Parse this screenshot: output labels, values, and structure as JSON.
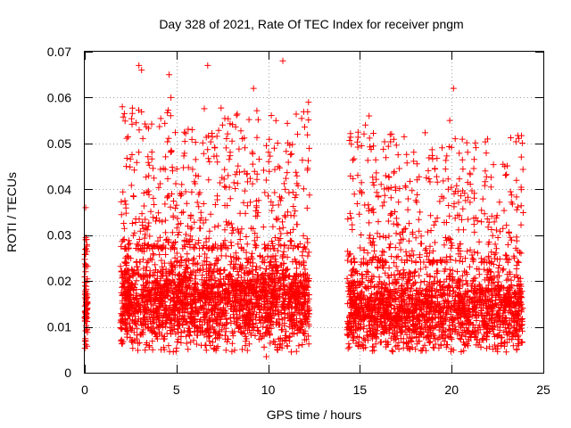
{
  "chart_data": {
    "type": "scatter",
    "title": "Day 328 of 2021, Rate Of TEC Index for receiver pngm",
    "xlabel": "GPS time / hours",
    "ylabel": "ROTI / TECUs",
    "xlim": [
      0,
      25
    ],
    "ylim": [
      0,
      0.07
    ],
    "xticks": [
      0,
      5,
      10,
      15,
      20,
      25
    ],
    "xtick_labels": [
      "0",
      "5",
      "10",
      "15",
      "20",
      "25"
    ],
    "yticks": [
      0,
      0.01,
      0.02,
      0.03,
      0.04,
      0.05,
      0.06,
      0.07
    ],
    "ytick_labels": [
      "0",
      "0.01",
      "0.02",
      "0.03",
      "0.04",
      "0.05",
      "0.06",
      "0.07"
    ],
    "grid": true,
    "marker": "+",
    "marker_color": "#ff0000",
    "series": [
      {
        "name": "ROTI",
        "segments": [
          {
            "x_start": 0.0,
            "x_end": 0.15,
            "base": 0.014,
            "spread": 0.009,
            "peak": 0.036
          },
          {
            "x_start": 1.95,
            "x_end": 12.25,
            "base": 0.016,
            "spread": 0.011,
            "peak": 0.068
          },
          {
            "x_start": 14.3,
            "x_end": 23.9,
            "base": 0.014,
            "spread": 0.01,
            "peak": 0.062
          }
        ],
        "notable_points": [
          {
            "x": 2.05,
            "y": 0.058
          },
          {
            "x": 2.95,
            "y": 0.067
          },
          {
            "x": 3.1,
            "y": 0.066
          },
          {
            "x": 4.6,
            "y": 0.065
          },
          {
            "x": 4.7,
            "y": 0.06
          },
          {
            "x": 6.7,
            "y": 0.067
          },
          {
            "x": 9.2,
            "y": 0.062
          },
          {
            "x": 10.8,
            "y": 0.068
          },
          {
            "x": 12.2,
            "y": 0.059
          },
          {
            "x": 15.5,
            "y": 0.056
          },
          {
            "x": 20.1,
            "y": 0.062
          },
          {
            "x": 19.9,
            "y": 0.055
          },
          {
            "x": 11.6,
            "y": 0.052
          },
          {
            "x": 15.3,
            "y": 0.054
          },
          {
            "x": 9.9,
            "y": 0.0035
          },
          {
            "x": 0.05,
            "y": 0.036
          },
          {
            "x": 0.05,
            "y": 0.029
          },
          {
            "x": 0.05,
            "y": 0.007
          }
        ]
      }
    ]
  }
}
